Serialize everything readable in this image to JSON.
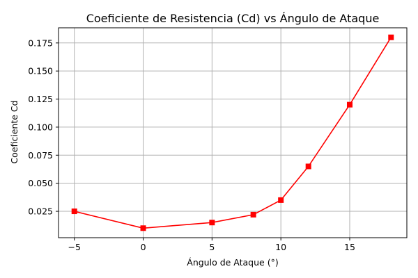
{
  "chart_data": {
    "type": "line",
    "title": "Coeficiente de Resistencia (Cd) vs Ángulo de Ataque",
    "xlabel": "Ángulo de Ataque (°)",
    "ylabel": "Coeficiente Cd",
    "x": [
      -5,
      0,
      5,
      8,
      10,
      12,
      15,
      18
    ],
    "series": [
      {
        "name": "",
        "values": [
          0.025,
          0.01,
          0.015,
          0.022,
          0.035,
          0.065,
          0.12,
          0.18
        ],
        "color": "#ff0000",
        "marker": "square"
      }
    ],
    "xlim": [
      -6.15,
      19.15
    ],
    "ylim": [
      0.0015,
      0.1885
    ],
    "x_ticks": [
      -5,
      0,
      5,
      10,
      15
    ],
    "x_tick_labels": [
      "−5",
      "0",
      "5",
      "10",
      "15"
    ],
    "y_ticks": [
      0.025,
      0.05,
      0.075,
      0.1,
      0.125,
      0.15,
      0.175
    ],
    "y_tick_labels": [
      "0.025",
      "0.050",
      "0.075",
      "0.100",
      "0.125",
      "0.150",
      "0.175"
    ],
    "grid": true,
    "legend": "none"
  }
}
